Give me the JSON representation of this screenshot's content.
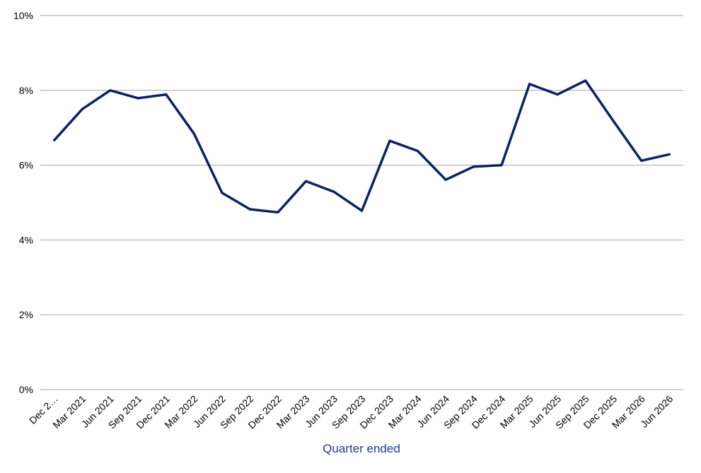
{
  "chart_data": {
    "type": "line",
    "xlabel": "Quarter ended",
    "ylabel": "",
    "ylim": [
      0,
      0.1
    ],
    "yticks": [
      "0%",
      "2%",
      "4%",
      "6%",
      "8%",
      "10%"
    ],
    "grid": true,
    "legend": "none",
    "categories": [
      "Dec 2…",
      "Mar 2021",
      "Jun 2021",
      "Sep 2021",
      "Dec 2021",
      "Mar 2022",
      "Jun 2022",
      "Sep 2022",
      "Dec 2022",
      "Mar 2023",
      "Jun 2023",
      "Sep 2023",
      "Dec 2023",
      "Mar 2024",
      "Jun 2024",
      "Sep 2024",
      "Dec 2024",
      "Mar 2025",
      "Jun 2025",
      "Sep 2025",
      "Dec 2025",
      "Mar 2026",
      "Jun 2026"
    ],
    "series": [
      {
        "values": [
          0.0667,
          0.075,
          0.08,
          0.0779,
          0.0789,
          0.0684,
          0.0526,
          0.0482,
          0.0474,
          0.0557,
          0.0529,
          0.0478,
          0.0665,
          0.0638,
          0.0561,
          0.0596,
          0.06,
          0.0817,
          0.0789,
          0.0826,
          0.0718,
          0.0612,
          0.0629
        ]
      }
    ]
  },
  "colors": {
    "line": "#0c2264",
    "xlabel": "#1f3a93",
    "grid": "#a6a6a6"
  }
}
